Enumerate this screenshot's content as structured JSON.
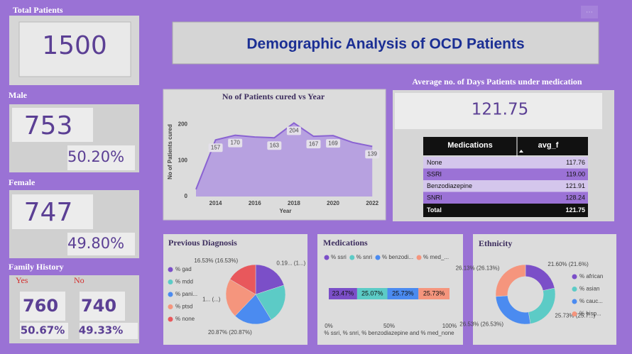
{
  "header": {
    "title": "Demographic Analysis of OCD Patients"
  },
  "cards": {
    "total": {
      "label": "Total Patients",
      "value": 1500
    },
    "male": {
      "label": "Male",
      "value": 753,
      "percent": "50.20%"
    },
    "female": {
      "label": "Female",
      "value": 747,
      "percent": "49.80%"
    },
    "family_history": {
      "label": "Family History",
      "yes_label": "Yes",
      "no_label": "No",
      "yes_value": 760,
      "no_value": 740,
      "yes_percent": "50.67%",
      "no_percent": "49.33%"
    },
    "avg_days": {
      "label": "Average no. of Days Patients under medication",
      "value": "121.75"
    }
  },
  "table": {
    "columns": [
      "Medications",
      "avg_f"
    ],
    "rows": [
      [
        "None",
        "117.76"
      ],
      [
        "SSRI",
        "119.00"
      ],
      [
        "Benzodiazepine",
        "121.91"
      ],
      [
        "SNRI",
        "128.24"
      ]
    ],
    "total": [
      "Total",
      "121.75"
    ]
  },
  "chart_data": [
    {
      "type": "area",
      "title": "No of Patients cured vs Year",
      "xlabel": "Year",
      "ylabel": "No of Patients cured",
      "x": [
        2013,
        2014,
        2015,
        2016,
        2017,
        2018,
        2019,
        2020,
        2021,
        2022
      ],
      "values": [
        20,
        157,
        170,
        165,
        163,
        204,
        167,
        169,
        150,
        139
      ],
      "value_labels": [
        null,
        "157",
        "170",
        null,
        "163",
        "204",
        "167",
        "169",
        null,
        "139"
      ],
      "color": "#8a63d2",
      "fill": "#b7a1e0",
      "xlim": [
        2013,
        2022.1
      ],
      "xticks": [
        2014,
        2016,
        2018,
        2020,
        2022
      ],
      "ylim": [
        0,
        250
      ],
      "yticks": [
        0,
        100,
        200
      ]
    },
    {
      "type": "pie",
      "title": "Previous Diagnosis",
      "categories": [
        "% gad",
        "% mdd",
        "% pani...",
        "% ptsd",
        "% none"
      ],
      "values": [
        19.96,
        21.27,
        20.87,
        21.37,
        16.53
      ],
      "value_labels": [
        "0.19... (1...)",
        null,
        "20.87% (20.87%)",
        "1... (...)",
        "16.53% (16.53%)"
      ],
      "colors": [
        "#7b4fc8",
        "#5ccbc6",
        "#4b8bf0",
        "#f5957d",
        "#e8585c"
      ]
    },
    {
      "type": "bar",
      "title": "Medications",
      "xlabel": "% ssri, % snri, % benzodiazepine and % med_none",
      "series": [
        {
          "name": "% ssri",
          "color": "#7b4fc8",
          "values": [
            23.47
          ],
          "value_labels": [
            "23.47%"
          ]
        },
        {
          "name": "% snri",
          "color": "#5ccbc6",
          "values": [
            25.07
          ],
          "value_labels": [
            "25.07%"
          ]
        },
        {
          "name": "% benzodi...",
          "color": "#4b8bf0",
          "values": [
            25.73
          ],
          "value_labels": [
            "25.73%"
          ]
        },
        {
          "name": "% med_...",
          "color": "#f5957d",
          "values": [
            25.73
          ],
          "value_labels": [
            "25.73%"
          ]
        }
      ],
      "xlim": [
        0,
        100
      ],
      "xticks": [
        {
          "value": 0,
          "label": "0%"
        },
        {
          "value": 50,
          "label": "50%"
        },
        {
          "value": 100,
          "label": "100%"
        }
      ]
    },
    {
      "type": "donut",
      "title": "Ethnicity",
      "categories": [
        "% african",
        "% asian",
        "% cauc...",
        "% hisp..."
      ],
      "values": [
        21.6,
        25.73,
        26.53,
        26.13
      ],
      "value_labels": [
        "21.60% (21.6%)",
        "25.73% (25.7...)",
        "26.53% (26.53%)",
        "26.13% (26.13%)"
      ],
      "colors": [
        "#7b4fc8",
        "#5ccbc6",
        "#4b8bf0",
        "#f5957d"
      ]
    }
  ]
}
